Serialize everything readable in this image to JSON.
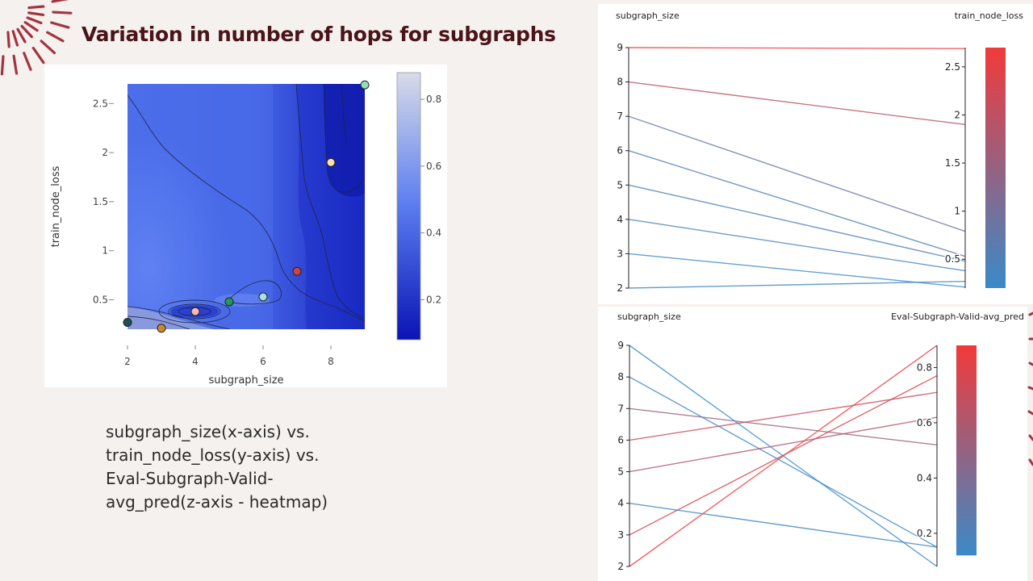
{
  "slide": {
    "title": "Variation in number of hops for subgraphs",
    "caption_lines": [
      "subgraph_size(x-axis) vs.",
      "train_node_loss(y-axis) vs.",
      "Eval-Subgraph-Valid-",
      "avg_pred(z-axis - heatmap)"
    ],
    "background_color": "#f5f1ee",
    "title_color": "#4a1418",
    "accent_color": "#a3343f"
  },
  "chart_data": [
    {
      "type": "heatmap",
      "xlabel": "subgraph_size",
      "ylabel": "train_node_loss",
      "colorbar_label": "",
      "x_ticks": [
        2,
        4,
        6,
        8
      ],
      "y_ticks": [
        0.5,
        1,
        1.5,
        2,
        2.5
      ],
      "colorbar_ticks": [
        0.2,
        0.4,
        0.6,
        0.8
      ],
      "xlim": [
        2,
        9
      ],
      "ylim": [
        0.2,
        2.7
      ],
      "zlim": [
        0.08,
        0.88
      ],
      "colorscale": [
        "#0a14b4",
        "#5a7cf0",
        "#d8dbe8"
      ],
      "points": [
        {
          "x": 2,
          "y": 0.27,
          "color": "#1f4e5a"
        },
        {
          "x": 3,
          "y": 0.21,
          "color": "#c98a2a"
        },
        {
          "x": 4,
          "y": 0.38,
          "color": "#f6b8b8"
        },
        {
          "x": 5,
          "y": 0.48,
          "color": "#1f9a5a"
        },
        {
          "x": 6,
          "y": 0.53,
          "color": "#a8dff0"
        },
        {
          "x": 7,
          "y": 0.79,
          "color": "#c94444"
        },
        {
          "x": 8,
          "y": 1.9,
          "color": "#ffe0b0"
        },
        {
          "x": 9,
          "y": 2.69,
          "color": "#8fe0b8"
        }
      ]
    },
    {
      "type": "parallel_coordinates",
      "left_axis": {
        "label": "subgraph_size",
        "range": [
          2,
          9
        ],
        "ticks": [
          2,
          3,
          4,
          5,
          6,
          7,
          8,
          9
        ]
      },
      "right_axis": {
        "label": "train_node_loss",
        "range": [
          0.2,
          2.7
        ],
        "ticks": [
          0.5,
          1.0,
          1.5,
          2.0,
          2.5
        ]
      },
      "colorbar_range": [
        0.2,
        2.7
      ],
      "colorscale": [
        "#3a8ac8",
        "#f23a3a"
      ],
      "lines": [
        {
          "left": 2,
          "right": 0.27
        },
        {
          "left": 3,
          "right": 0.21
        },
        {
          "left": 4,
          "right": 0.38
        },
        {
          "left": 5,
          "right": 0.48
        },
        {
          "left": 6,
          "right": 0.53
        },
        {
          "left": 7,
          "right": 0.79
        },
        {
          "left": 8,
          "right": 1.9
        },
        {
          "left": 9,
          "right": 2.69
        }
      ]
    },
    {
      "type": "parallel_coordinates",
      "left_axis": {
        "label": "subgraph_size",
        "range": [
          2,
          9
        ],
        "ticks": [
          2,
          3,
          4,
          5,
          6,
          7,
          8,
          9
        ]
      },
      "right_axis": {
        "label": "Eval-Subgraph-Valid-avg_pred",
        "range": [
          0.08,
          0.88
        ],
        "ticks": [
          0.2,
          0.4,
          0.6,
          0.8
        ]
      },
      "colorbar_range": [
        0.12,
        0.88
      ],
      "colorscale": [
        "#3a8ac8",
        "#f23a3a"
      ],
      "lines": [
        {
          "left": 2,
          "right": 0.88
        },
        {
          "left": 3,
          "right": 0.77
        },
        {
          "left": 4,
          "right": 0.15
        },
        {
          "left": 5,
          "right": 0.62
        },
        {
          "left": 6,
          "right": 0.71
        },
        {
          "left": 7,
          "right": 0.52
        },
        {
          "left": 8,
          "right": 0.15
        },
        {
          "left": 9,
          "right": 0.08
        }
      ]
    }
  ]
}
